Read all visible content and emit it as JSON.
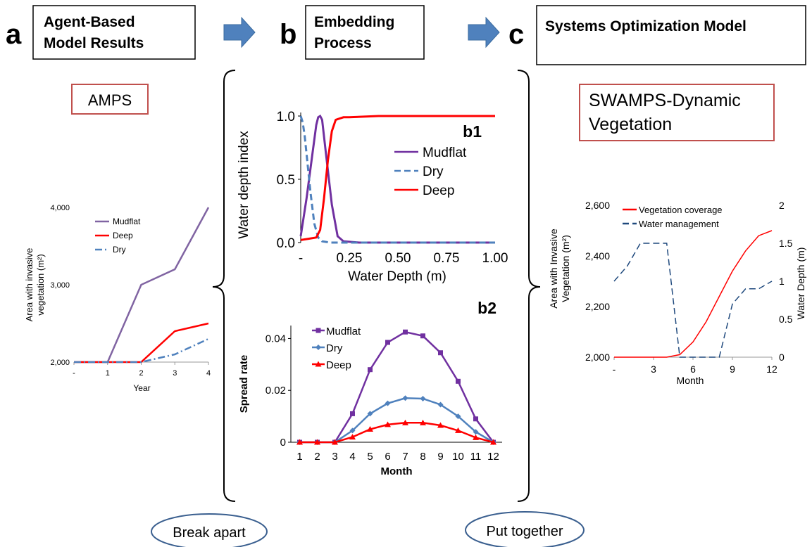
{
  "header": {
    "a": {
      "letter": "a",
      "title_line1": "Agent-Based",
      "title_line2": "Model Results"
    },
    "b": {
      "letter": "b",
      "title_line1": "Embedding",
      "title_line2": "Process"
    },
    "c": {
      "letter": "c",
      "title_line1": "Systems Optimization Model"
    }
  },
  "labels": {
    "amps": "AMPS",
    "swamps_line1": "SWAMPS-Dynamic",
    "swamps_line2": "Vegetation",
    "break_apart": "Break apart",
    "put_together": "Put together"
  },
  "colors": {
    "purple": "#7030A0",
    "light_purple": "#8064A2",
    "red": "#FF0000",
    "blue": "#4F81BD",
    "dark_blue": "#1F497D",
    "box_red": "#C0504D",
    "arrow": "#4F81BD",
    "ellipse": "#3A5F8F"
  },
  "chart_data": [
    {
      "id": "amps",
      "type": "line",
      "title": "",
      "xlabel": "Year",
      "ylabel": "Area with invasive vegetation (m²)",
      "x_ticks": [
        "-",
        "1",
        "2",
        "3",
        "4"
      ],
      "y_ticks": [
        "2,000",
        "3,000",
        "4,000"
      ],
      "ylim": [
        2000,
        4000
      ],
      "x": [
        0,
        1,
        2,
        3,
        4
      ],
      "legend_position": "top-left",
      "series": [
        {
          "name": "Mudflat",
          "color": "#8064A2",
          "dash": "solid",
          "values": [
            2000,
            2000,
            3000,
            3200,
            4000
          ]
        },
        {
          "name": "Deep",
          "color": "#FF0000",
          "dash": "solid",
          "values": [
            2000,
            2000,
            2000,
            2400,
            2500
          ]
        },
        {
          "name": "Dry",
          "color": "#4F81BD",
          "dash": "dashdot",
          "values": [
            2000,
            2000,
            2000,
            2100,
            2300
          ]
        }
      ]
    },
    {
      "id": "b1",
      "type": "line",
      "panel_label": "b1",
      "title": "",
      "xlabel": "Water Depth (m)",
      "ylabel": "Water depth index",
      "x_ticks": [
        "-",
        "0.25",
        "0.50",
        "0.75",
        "1.00"
      ],
      "y_ticks": [
        "0.0",
        "0.5",
        "1.0"
      ],
      "xlim": [
        0,
        1
      ],
      "ylim": [
        0,
        1
      ],
      "legend_position": "right",
      "series": [
        {
          "name": "Mudflat",
          "color": "#7030A0",
          "dash": "solid",
          "x": [
            0,
            0.03,
            0.06,
            0.08,
            0.09,
            0.1,
            0.11,
            0.13,
            0.16,
            0.19,
            0.22,
            0.3,
            1.0
          ],
          "values": [
            0.05,
            0.35,
            0.7,
            0.93,
            0.99,
            1.0,
            0.97,
            0.7,
            0.3,
            0.05,
            0.01,
            0.0,
            0.0
          ]
        },
        {
          "name": "Dry",
          "color": "#4F81BD",
          "dash": "dash",
          "x": [
            0,
            0.01,
            0.02,
            0.03,
            0.05,
            0.07,
            0.09,
            0.11,
            0.15,
            1.0
          ],
          "values": [
            1.0,
            0.95,
            0.85,
            0.7,
            0.4,
            0.15,
            0.04,
            0.01,
            0.0,
            0.0
          ]
        },
        {
          "name": "Deep",
          "color": "#FF0000",
          "dash": "solid",
          "x": [
            0,
            0.04,
            0.08,
            0.1,
            0.12,
            0.14,
            0.16,
            0.18,
            0.2,
            0.22,
            0.25,
            0.4,
            1.0
          ],
          "values": [
            0.02,
            0.03,
            0.04,
            0.1,
            0.35,
            0.65,
            0.88,
            0.97,
            0.98,
            0.99,
            0.99,
            1.0,
            1.0
          ]
        }
      ]
    },
    {
      "id": "b2",
      "type": "line",
      "panel_label": "b2",
      "title": "",
      "xlabel": "Month",
      "ylabel": "Spread rate",
      "x": [
        1,
        2,
        3,
        4,
        5,
        6,
        7,
        8,
        9,
        10,
        11,
        12
      ],
      "x_ticks": [
        "1",
        "2",
        "3",
        "4",
        "5",
        "6",
        "7",
        "8",
        "9",
        "10",
        "11",
        "12"
      ],
      "y_ticks": [
        "0",
        "0.02",
        "0.04"
      ],
      "ylim": [
        0,
        0.045
      ],
      "legend_position": "top-left",
      "series": [
        {
          "name": "Mudflat",
          "color": "#7030A0",
          "marker": "square",
          "values": [
            0,
            0,
            0,
            0.011,
            0.028,
            0.0385,
            0.0425,
            0.041,
            0.0345,
            0.0235,
            0.009,
            0
          ]
        },
        {
          "name": "Dry",
          "color": "#4F81BD",
          "marker": "diamond",
          "values": [
            0,
            0,
            0,
            0.0045,
            0.011,
            0.015,
            0.017,
            0.0168,
            0.0145,
            0.01,
            0.004,
            0
          ]
        },
        {
          "name": "Deep",
          "color": "#FF0000",
          "marker": "triangle",
          "values": [
            0,
            0,
            0,
            0.002,
            0.005,
            0.0068,
            0.0075,
            0.0075,
            0.0065,
            0.0045,
            0.0018,
            0
          ]
        }
      ]
    },
    {
      "id": "swamps",
      "type": "line",
      "title": "",
      "xlabel": "Month",
      "ylabel": "Area  with Invasive Vegetation (m²)",
      "y2label": "Water Depth (m)",
      "x_ticks": [
        "-",
        "3",
        "6",
        "9",
        "12"
      ],
      "y_ticks": [
        "2,000",
        "2,200",
        "2,400",
        "2,600"
      ],
      "y2_ticks": [
        "0",
        "0.5",
        "1",
        "1.5",
        "2"
      ],
      "xlim": [
        0,
        12
      ],
      "ylim": [
        2000,
        2600
      ],
      "y2lim": [
        0,
        2
      ],
      "legend_position": "top",
      "series": [
        {
          "name": "Vegetation coverage",
          "axis": "left",
          "color": "#FF0000",
          "dash": "solid",
          "x": [
            0,
            1,
            2,
            3,
            4,
            5,
            6,
            7,
            8,
            9,
            10,
            11,
            12
          ],
          "values": [
            2000,
            2000,
            2000,
            2000,
            2000,
            2010,
            2060,
            2140,
            2240,
            2340,
            2420,
            2480,
            2500
          ]
        },
        {
          "name": "Water management",
          "axis": "right",
          "color": "#1F497D",
          "dash": "dash",
          "x": [
            0,
            1,
            2,
            3,
            4,
            5,
            6,
            7,
            8,
            9,
            10,
            11,
            12
          ],
          "values": [
            1.0,
            1.2,
            1.5,
            1.5,
            1.5,
            0,
            0,
            0,
            0,
            0.7,
            0.9,
            0.9,
            1.0
          ]
        }
      ]
    }
  ]
}
